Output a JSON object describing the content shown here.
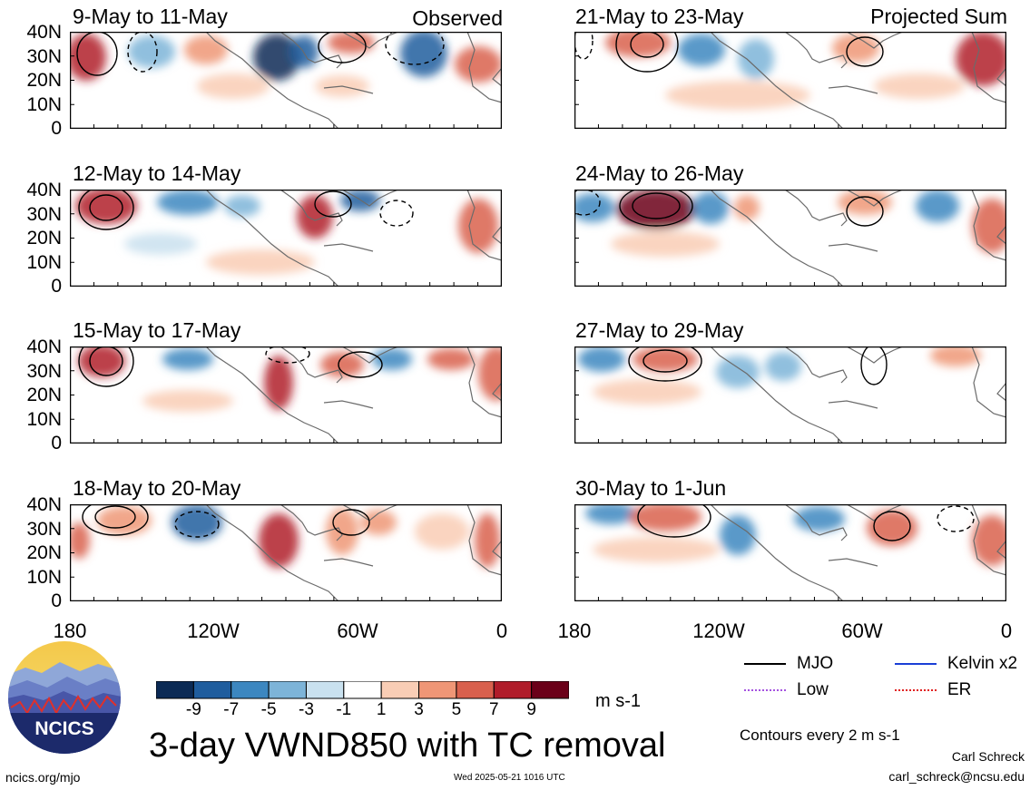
{
  "panels": [
    {
      "title": "9-May to 11-May",
      "label": "Observed"
    },
    {
      "title": "12-May to 14-May",
      "label": ""
    },
    {
      "title": "15-May to 17-May",
      "label": ""
    },
    {
      "title": "18-May to 20-May",
      "label": ""
    },
    {
      "title": "21-May to 23-May",
      "label": "Projected Sum"
    },
    {
      "title": "24-May to 26-May",
      "label": ""
    },
    {
      "title": "27-May to 29-May",
      "label": ""
    },
    {
      "title": "30-May to 1-Jun",
      "label": ""
    }
  ],
  "lat_labels": [
    "40N",
    "30N",
    "20N",
    "10N",
    "0"
  ],
  "lon_labels": [
    "180",
    "120W",
    "60W",
    "0"
  ],
  "colorbar": {
    "labels": [
      "-9",
      "-7",
      "-5",
      "-3",
      "-1",
      "1",
      "3",
      "5",
      "7",
      "9"
    ],
    "colors": [
      "#0b2a55",
      "#1f5d9e",
      "#3c87c0",
      "#7db4d8",
      "#c9e1ef",
      "#ffffff",
      "#f9cdb5",
      "#ef9676",
      "#d9604d",
      "#b01c2a",
      "#6b0019"
    ],
    "units": "m s-1"
  },
  "title": "3-day VWND850 with TC removal",
  "legend": [
    {
      "label": "MJO",
      "color": "#000000"
    },
    {
      "label": "Kelvin x2",
      "color": "#1a3fd6"
    },
    {
      "label": "Low",
      "color": "#a552e0"
    },
    {
      "label": "ER",
      "color": "#e02020"
    }
  ],
  "contour_note": "Contours every 2 m s-1",
  "author": "Carl Schreck",
  "email": "carl_schreck@ncsu.edu",
  "site": "ncics.org/mjo",
  "timestamp": "Wed 2025-05-21 1016 UTC",
  "logo_text": "NCICS"
}
